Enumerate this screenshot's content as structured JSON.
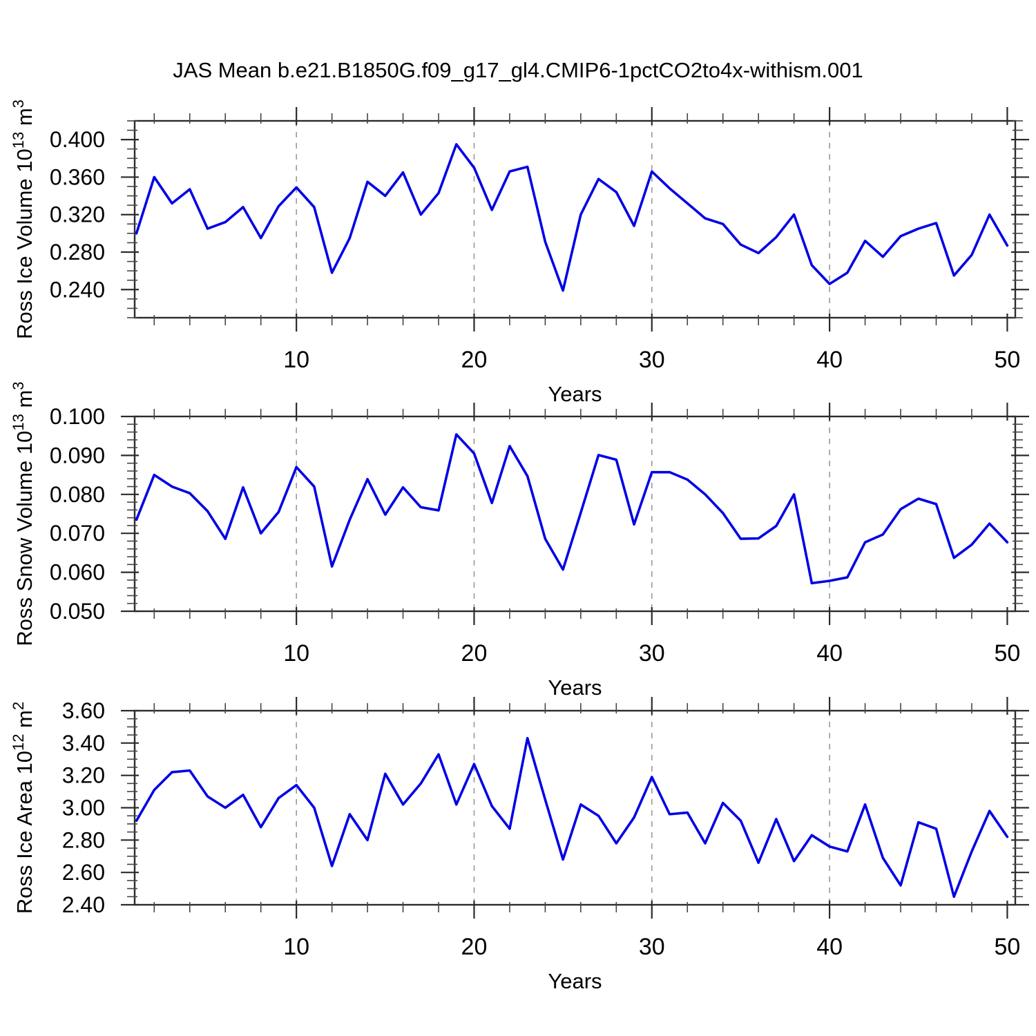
{
  "title": "JAS Mean b.e21.B1850G.f09_g17_gl4.CMIP6-1pctCO2to4x-withism.001",
  "colors": {
    "line": "#0000E6",
    "grid": "#999999",
    "frame": "#2b2b2b",
    "minor_tick": "#444444",
    "text": "#000000"
  },
  "chart_data": [
    {
      "type": "line",
      "name": "ross-ice-volume",
      "ylabel_parts": [
        {
          "t": "Ross Ice Volume 10"
        },
        {
          "t": "13",
          "sup": true
        },
        {
          "t": " m"
        },
        {
          "t": "3",
          "sup": true
        }
      ],
      "xlabel": "Years",
      "x_start": 1,
      "xlim": [
        0.9,
        50.45
      ],
      "ylim": [
        0.21,
        0.42
      ],
      "xticks": {
        "values": [
          10,
          20,
          30,
          40,
          50
        ],
        "labels": [
          "10",
          "20",
          "30",
          "40",
          "50"
        ]
      },
      "xtick_minor_step": 2,
      "grid_x": [
        10,
        20,
        30,
        40
      ],
      "yticks": {
        "values": [
          0.4,
          0.36,
          0.32,
          0.28,
          0.24
        ],
        "labels": [
          "0.400",
          "0.360",
          "0.320",
          "0.280",
          "0.240"
        ]
      },
      "ytick_minor_step": 0.01,
      "values": [
        0.3,
        0.36,
        0.332,
        0.347,
        0.305,
        0.312,
        0.328,
        0.295,
        0.329,
        0.349,
        0.328,
        0.258,
        0.295,
        0.355,
        0.34,
        0.365,
        0.32,
        0.343,
        0.395,
        0.37,
        0.325,
        0.366,
        0.371,
        0.291,
        0.239,
        0.32,
        0.358,
        0.344,
        0.308,
        0.366,
        0.348,
        0.332,
        0.316,
        0.31,
        0.288,
        0.279,
        0.296,
        0.32,
        0.266,
        0.246,
        0.258,
        0.292,
        0.275,
        0.297,
        0.305,
        0.311,
        0.255,
        0.277,
        0.32,
        0.287
      ]
    },
    {
      "type": "line",
      "name": "ross-snow-volume",
      "ylabel_parts": [
        {
          "t": "Ross Snow Volume 10"
        },
        {
          "t": "13",
          "sup": true
        },
        {
          "t": " m"
        },
        {
          "t": "3",
          "sup": true
        }
      ],
      "xlabel": "Years",
      "x_start": 1,
      "xlim": [
        0.9,
        50.45
      ],
      "ylim": [
        0.05,
        0.1
      ],
      "xticks": {
        "values": [
          10,
          20,
          30,
          40,
          50
        ],
        "labels": [
          "10",
          "20",
          "30",
          "40",
          "50"
        ]
      },
      "xtick_minor_step": 2,
      "grid_x": [
        10,
        20,
        30,
        40
      ],
      "yticks": {
        "values": [
          0.1,
          0.09,
          0.08,
          0.07,
          0.06,
          0.05
        ],
        "labels": [
          "0.100",
          "0.090",
          "0.080",
          "0.070",
          "0.060",
          "0.050"
        ]
      },
      "ytick_minor_step": 0.002,
      "values": [
        0.0735,
        0.085,
        0.082,
        0.0803,
        0.0757,
        0.0686,
        0.0818,
        0.07,
        0.0755,
        0.087,
        0.082,
        0.0615,
        0.0735,
        0.0839,
        0.0748,
        0.0818,
        0.0767,
        0.0759,
        0.0954,
        0.0905,
        0.0778,
        0.0924,
        0.0847,
        0.0686,
        0.0607,
        0.0753,
        0.0901,
        0.0889,
        0.0723,
        0.0857,
        0.0857,
        0.0838,
        0.08,
        0.0752,
        0.0686,
        0.0687,
        0.0719,
        0.08,
        0.0572,
        0.0578,
        0.0587,
        0.0677,
        0.0697,
        0.0762,
        0.0789,
        0.0775,
        0.0637,
        0.0671,
        0.0725,
        0.0677
      ]
    },
    {
      "type": "line",
      "name": "ross-ice-area",
      "ylabel_parts": [
        {
          "t": "Ross Ice Area 10"
        },
        {
          "t": "12",
          "sup": true
        },
        {
          "t": " m"
        },
        {
          "t": "2",
          "sup": true
        }
      ],
      "xlabel": "Years",
      "x_start": 1,
      "xlim": [
        0.9,
        50.45
      ],
      "ylim": [
        2.4,
        3.6
      ],
      "xticks": {
        "values": [
          10,
          20,
          30,
          40,
          50
        ],
        "labels": [
          "10",
          "20",
          "30",
          "40",
          "50"
        ]
      },
      "xtick_minor_step": 2,
      "grid_x": [
        10,
        20,
        30,
        40
      ],
      "yticks": {
        "values": [
          3.6,
          3.4,
          3.2,
          3.0,
          2.8,
          2.6,
          2.4
        ],
        "labels": [
          "3.60",
          "3.40",
          "3.20",
          "3.00",
          "2.80",
          "2.60",
          "2.40"
        ]
      },
      "ytick_minor_step": 0.05,
      "values": [
        2.92,
        3.11,
        3.22,
        3.23,
        3.07,
        3.0,
        3.08,
        2.88,
        3.06,
        3.14,
        3.0,
        2.64,
        2.96,
        2.8,
        3.21,
        3.02,
        3.15,
        3.33,
        3.02,
        3.27,
        3.01,
        2.87,
        3.43,
        3.05,
        2.68,
        3.02,
        2.95,
        2.78,
        2.94,
        3.19,
        2.96,
        2.97,
        2.78,
        3.03,
        2.92,
        2.66,
        2.93,
        2.67,
        2.83,
        2.76,
        2.73,
        3.02,
        2.69,
        2.52,
        2.91,
        2.87,
        2.45,
        2.73,
        2.98,
        2.82
      ]
    }
  ]
}
